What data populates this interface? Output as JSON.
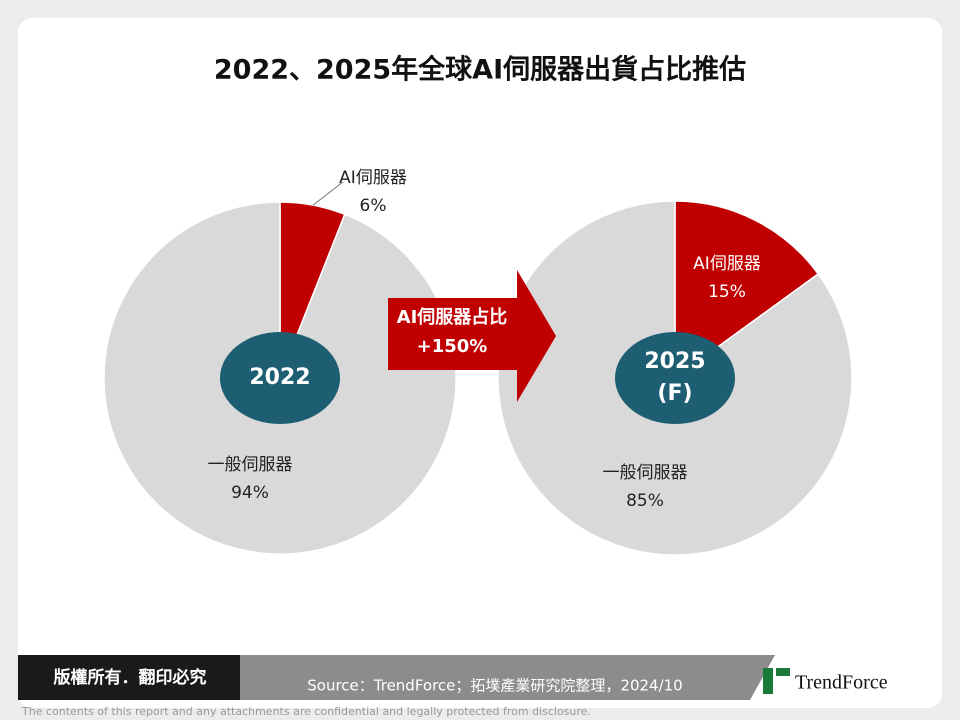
{
  "title": "2022、2025年全球AI伺服器出貨占比推估",
  "chart_data": [
    {
      "type": "pie",
      "center_label": [
        "2022"
      ],
      "categories": [
        "AI伺服器",
        "一般伺服器"
      ],
      "values": [
        6,
        94
      ],
      "value_labels": [
        "6%",
        "94%"
      ],
      "colors": [
        "#c00000",
        "#d9d9d9"
      ]
    },
    {
      "type": "pie",
      "center_label": [
        "2025",
        "(F)"
      ],
      "categories": [
        "AI伺服器",
        "一般伺服器"
      ],
      "values": [
        15,
        85
      ],
      "value_labels": [
        "15%",
        "85%"
      ],
      "colors": [
        "#c00000",
        "#d9d9d9"
      ]
    }
  ],
  "arrow": {
    "lines": [
      "AI伺服器占比",
      "+150%"
    ]
  },
  "footer": {
    "rights": "版權所有．翻印必究",
    "source": "Source：TrendForce；拓墣產業研究院整理，2024/10",
    "logo": "TrendForce",
    "disclaimer": "The contents of this report and any attachments are confidential and legally protected from disclosure."
  }
}
